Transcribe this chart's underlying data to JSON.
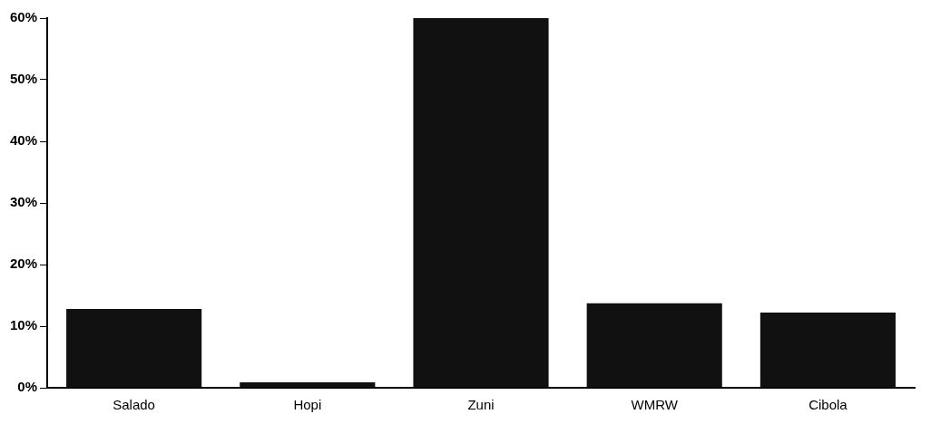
{
  "chart_data": {
    "type": "bar",
    "categories": [
      "Salado",
      "Hopi",
      "Zuni",
      "WMRW",
      "Cibola"
    ],
    "values": [
      12.8,
      0.9,
      60,
      13.7,
      12.2
    ],
    "color": "#111111",
    "ylim": [
      0,
      60
    ],
    "yticks": [
      {
        "value": 0,
        "label": "0%"
      },
      {
        "value": 10,
        "label": "10%"
      },
      {
        "value": 20,
        "label": "20%"
      },
      {
        "value": 30,
        "label": "30%"
      },
      {
        "value": 40,
        "label": "40%"
      },
      {
        "value": 50,
        "label": "50%"
      },
      {
        "value": 60,
        "label": "60%"
      }
    ],
    "grid": false,
    "legend": false
  }
}
